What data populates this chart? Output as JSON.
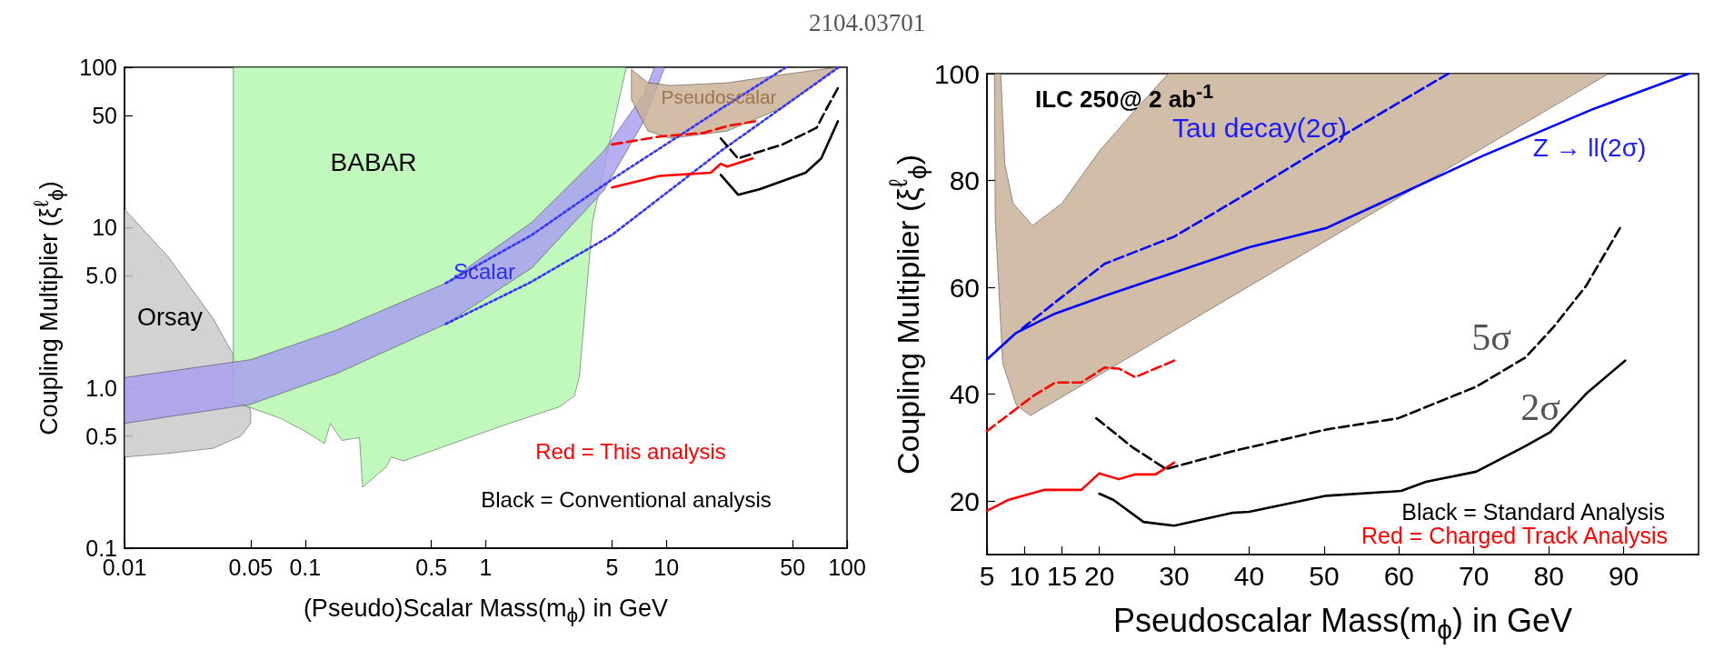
{
  "chart_data": [
    {
      "type": "line",
      "title": "2104.03701",
      "xlabel": "(Pseudo)Scalar Mass(m$_{ϕ}$) in GeV",
      "ylabel": "Coupling Multiplier (ξ$^{ℓ}$$_{ϕ}$)",
      "log": "xy",
      "marker": "none",
      "xlim": [
        0.01,
        100
      ],
      "ylim": [
        0.1,
        100
      ],
      "xticks": [
        0.01,
        0.05,
        0.1,
        0.5,
        1,
        5,
        10,
        50,
        100
      ],
      "yticks": [
        0.1,
        0.5,
        {
          "value": 1,
          "label": "1.0"
        },
        {
          "value": 5,
          "label": "5.0"
        },
        10,
        50,
        100
      ],
      "series": [
        {
          "type": "area",
          "color": "#c8c8c8",
          "x": [
            0.01,
            0.0174,
            0.031,
            0.044,
            0.05,
            0.05,
            0.044,
            0.031,
            0.0174,
            0.01
          ],
          "values": [
            13,
            6.6,
            2.7,
            1.33,
            0.7,
            0.6,
            0.5,
            0.42,
            0.39,
            0.37
          ]
        },
        {
          "type": "area",
          "color": "#b3f7ad",
          "x": [
            0.04,
            6,
            4.9,
            3.9,
            3.3,
            3.1,
            2.55,
            1.35,
            0.62,
            0.35,
            0.3,
            0.28,
            0.208,
            0.2,
            0.16,
            0.138,
            0.128,
            0.096,
            0.072,
            0.04
          ],
          "values": [
            100,
            100,
            36,
            10.8,
            1.18,
            0.89,
            0.76,
            0.6,
            0.44,
            0.35,
            0.37,
            0.32,
            0.24,
            0.49,
            0.47,
            0.6,
            0.45,
            0.55,
            0.65,
            0.82
          ]
        },
        {
          "type": "area",
          "color": "#a89ef0",
          "x": [
            0.01,
            0.05,
            0.15,
            0.6,
            1.8,
            4.5,
            7.5,
            8.6,
            9.8,
            7.5,
            4.5,
            1.8,
            0.6,
            0.15,
            0.05,
            0.01
          ],
          "values": [
            1.16,
            1.5,
            2.3,
            4.5,
            10.8,
            30,
            68,
            100,
            100,
            46,
            17,
            5.6,
            2.5,
            1.23,
            0.79,
            0.6
          ]
        },
        {
          "type": "area",
          "color": "#c9ae93",
          "x": [
            6.4,
            7.9,
            10.6,
            21.7,
            44,
            88,
            44,
            21.7,
            10.6,
            7.9,
            6.4
          ],
          "values": [
            97,
            80,
            77,
            80,
            90,
            100,
            56,
            40,
            36,
            40,
            63
          ]
        },
        {
          "color": "#3333ff",
          "line_style": "dotted",
          "x": [
            0.6,
            1.8,
            5,
            20,
            46
          ],
          "values": [
            4.5,
            9,
            20,
            55,
            100
          ]
        },
        {
          "color": "#3333ff",
          "line_style": "dotted",
          "x": [
            0.6,
            1.8,
            5,
            20,
            90
          ],
          "values": [
            2.5,
            4.6,
            9,
            30,
            100
          ]
        },
        {
          "color": "#ff0000",
          "line_style": "dashed",
          "x": [
            5,
            9.2,
            16.2,
            21.7,
            31
          ],
          "values": [
            33,
            37,
            39,
            43,
            46
          ]
        },
        {
          "color": "#ff0000",
          "line_style": "solid",
          "x": [
            5,
            9.2,
            17.6,
            20,
            21.7,
            30
          ],
          "values": [
            17.8,
            21,
            22,
            25,
            24,
            27
          ]
        },
        {
          "color": "#000000",
          "line_style": "dashed",
          "x": [
            20,
            24.9,
            44,
            68,
            76,
            89
          ],
          "values": [
            36,
            27,
            33,
            42,
            53.6,
            74
          ]
        },
        {
          "color": "#000000",
          "line_style": "solid",
          "x": [
            20,
            25,
            33,
            59,
            72,
            89
          ],
          "values": [
            21.3,
            16,
            17.4,
            22,
            27,
            46
          ]
        }
      ],
      "annotations": [
        "BABAR",
        "Orsay",
        "Scalar",
        "Pseudoscalar",
        "Red = This analysis",
        "Black = Conventional analysis"
      ]
    },
    {
      "type": "line",
      "xlabel": "Pseudoscalar Mass(m$_{ϕ}$) in GeV",
      "ylabel": "Coupling Multiplier (ξ$^{ℓ}$$_{ϕ}$)",
      "marker": "none",
      "xlim": [
        5,
        100
      ],
      "ylim": [
        10,
        100
      ],
      "xticks": [
        5,
        10,
        15,
        20,
        30,
        40,
        50,
        60,
        70,
        80,
        90
      ],
      "yticks": [
        20,
        40,
        60,
        80,
        100
      ],
      "series": [
        {
          "type": "area",
          "color": "#c8ae96",
          "x": [
            6,
            6.1,
            7.1,
            8.9,
            10.8,
            20,
            40,
            60,
            88,
            29.2,
            25,
            20,
            15,
            11.1,
            8.5,
            7.4,
            6.85
          ],
          "values": [
            100,
            72.6,
            45.8,
            38,
            36,
            43.6,
            60.2,
            76.8,
            100,
            100,
            93.5,
            85.5,
            75.7,
            71.6,
            75.7,
            83,
            100
          ]
        },
        {
          "color": "#0000ff",
          "line_style": "solid",
          "x": [
            5,
            8.9,
            14.1,
            20.7,
            30,
            40,
            50.3,
            60.7,
            71,
            85.8,
            98.7
          ],
          "values": [
            46.5,
            51.5,
            55.1,
            58.4,
            62.8,
            67.5,
            71.1,
            77.8,
            84.5,
            93.3,
            100
          ]
        },
        {
          "color": "#0000ff",
          "line_style": "dashed",
          "x": [
            9.7,
            14.1,
            20.7,
            30,
            40,
            50.3,
            66.6
          ],
          "values": [
            52.3,
            57.2,
            64.4,
            69.5,
            77.8,
            86.6,
            100
          ]
        },
        {
          "color": "#ff0000",
          "line_style": "dashed",
          "x": [
            5,
            11.1,
            14.1,
            17.6,
            20.7,
            22.6,
            24.8,
            30
          ],
          "values": [
            33.1,
            39.6,
            42.2,
            42.2,
            45,
            44.8,
            43.2,
            46.3
          ]
        },
        {
          "color": "#ff0000",
          "line_style": "solid",
          "x": [
            5,
            7.8,
            12.6,
            17.6,
            20,
            22.6,
            24.8,
            27.5,
            30
          ],
          "values": [
            18.2,
            20.2,
            22.1,
            22.1,
            25.2,
            24.1,
            25,
            25,
            27.2
          ]
        },
        {
          "color": "#000000",
          "line_style": "dashed",
          "x": [
            19.6,
            24.4,
            28.9,
            37.7,
            50.3,
            59.9,
            70.3,
            76.9,
            80.6,
            85,
            89.5
          ],
          "values": [
            35.5,
            30.1,
            26,
            29.3,
            33.4,
            35.5,
            41.4,
            46.9,
            52.5,
            60.3,
            71.1
          ]
        },
        {
          "color": "#000000",
          "line_style": "solid",
          "x": [
            20,
            21.9,
            25.9,
            30,
            37.7,
            40,
            50.3,
            60.3,
            63.6,
            70.3,
            76.9,
            80.2,
            85,
            90.2
          ],
          "values": [
            21.4,
            20.2,
            16.1,
            15.4,
            17.8,
            18,
            21,
            21.9,
            23.6,
            25.5,
            30.3,
            32.9,
            40.1,
            46.3
          ]
        }
      ],
      "annotations": [
        "ILC 250@ 2 ab$^{-1}$",
        "Tau decay(2σ)",
        "Z → ll(2σ)",
        "5σ",
        "2σ",
        "Black = Standard Analysis",
        "Red = Charged Track Analysis"
      ]
    }
  ]
}
